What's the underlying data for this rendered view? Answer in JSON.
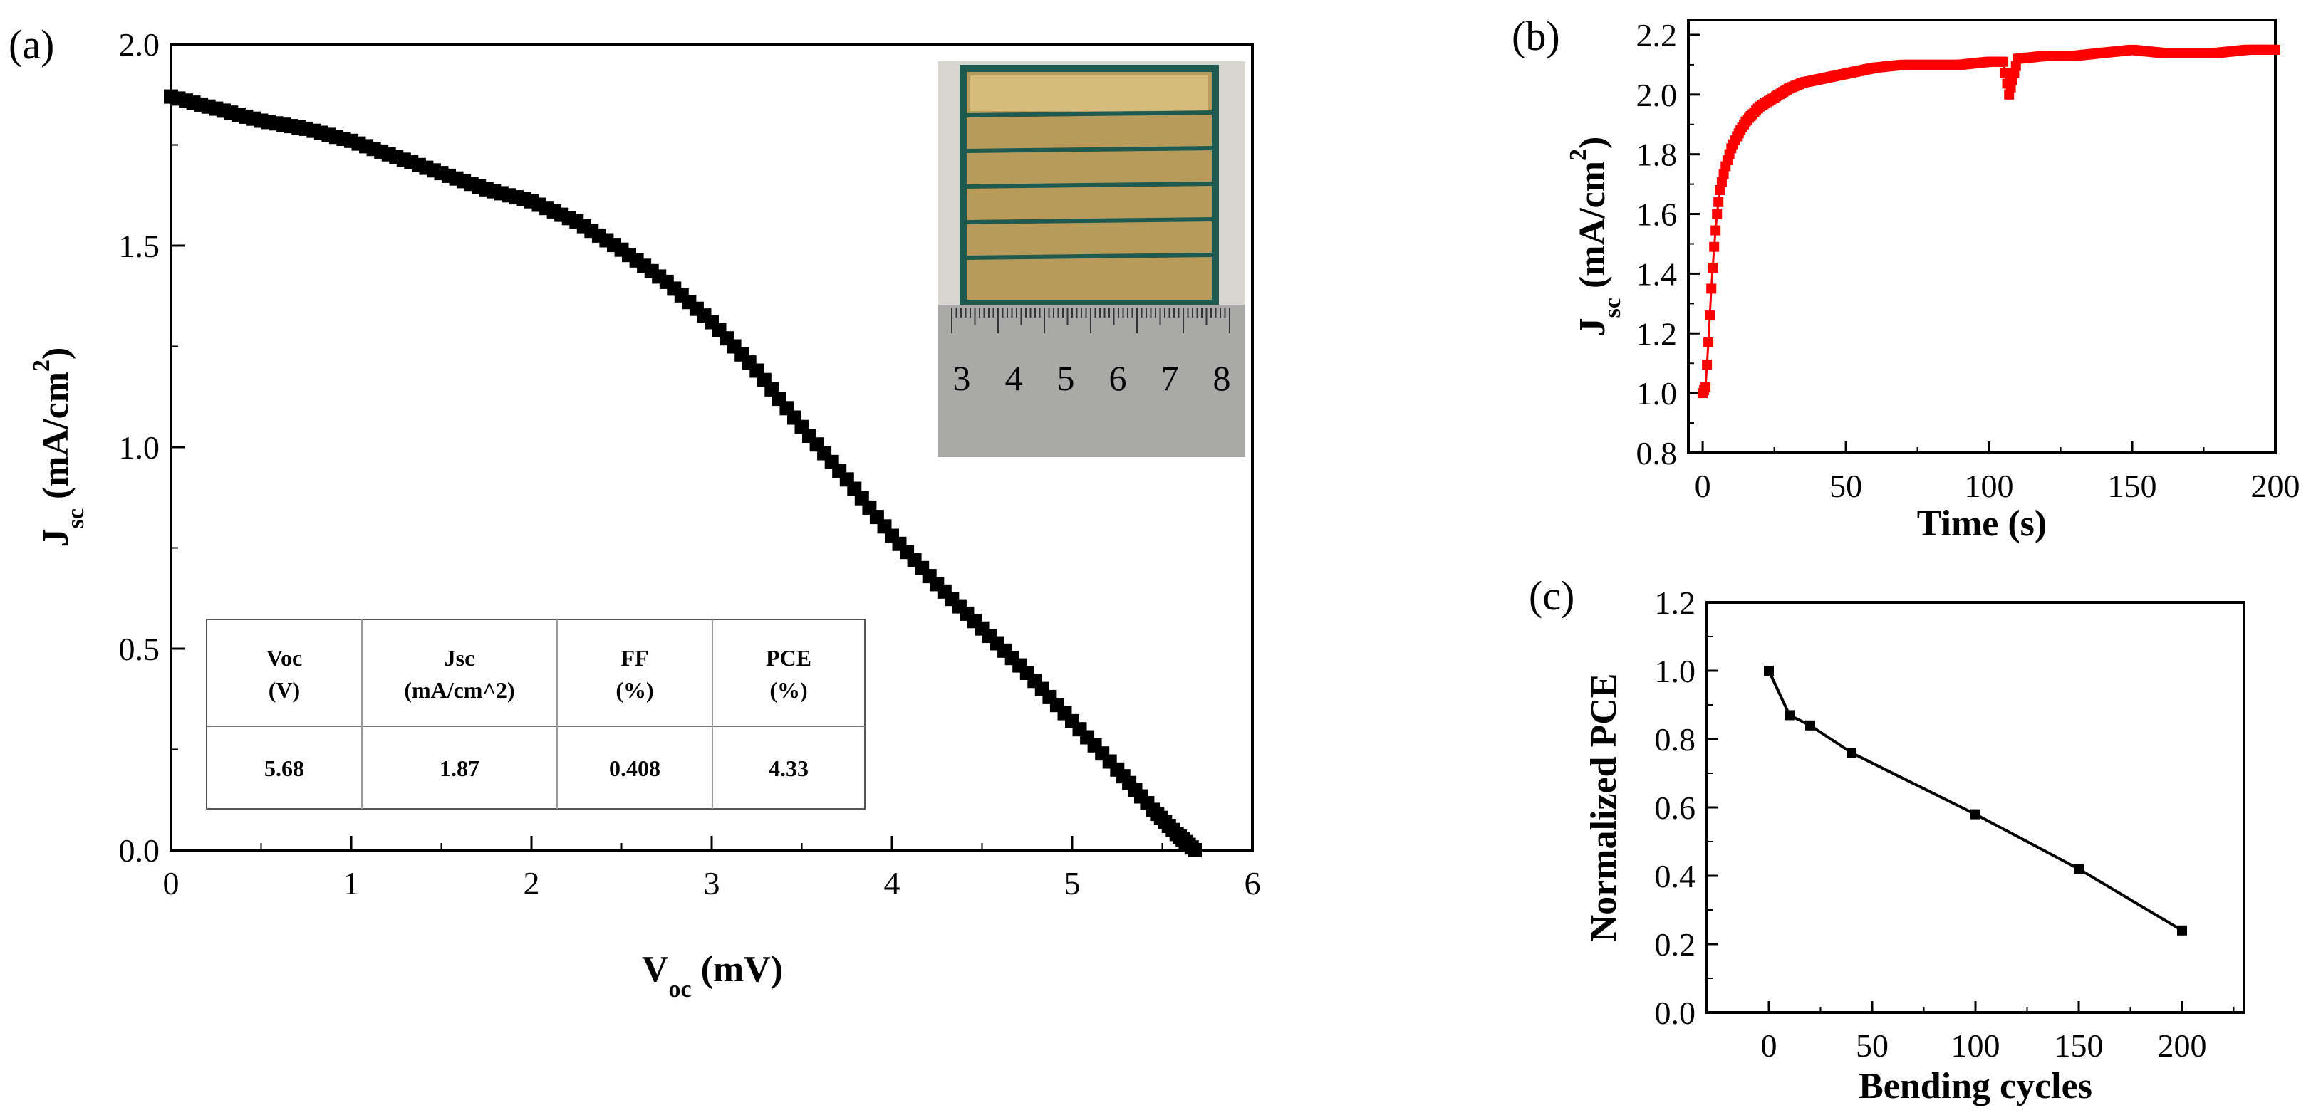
{
  "chart_data": [
    {
      "panel": "(a)",
      "type": "line",
      "title": "",
      "xlabel": "V",
      "xlabel_sub": "oc",
      "xlabel_unit": " (mV)",
      "ylabel": "J",
      "ylabel_sub": "sc",
      "ylabel_unit": " (mA/cm",
      "ylabel_sup": "2",
      "ylabel_close": ")",
      "xlim": [
        0,
        6
      ],
      "ylim": [
        0,
        2.0
      ],
      "xticks": [
        "0",
        "1",
        "2",
        "3",
        "4",
        "5",
        "6"
      ],
      "yticks": [
        "0.0",
        "0.5",
        "1.0",
        "1.5",
        "2.0"
      ],
      "marker_color": "#000000",
      "grid": false,
      "series": [
        {
          "marker": "square",
          "x": [
            0,
            0.25,
            0.5,
            0.75,
            1.0,
            1.25,
            1.5,
            1.75,
            2.0,
            2.25,
            2.5,
            2.75,
            3.0,
            3.25,
            3.5,
            3.75,
            4.0,
            4.25,
            4.5,
            4.75,
            5.0,
            5.25,
            5.45,
            5.58,
            5.68
          ],
          "y": [
            1.87,
            1.84,
            1.81,
            1.79,
            1.76,
            1.72,
            1.68,
            1.64,
            1.61,
            1.56,
            1.49,
            1.41,
            1.31,
            1.19,
            1.05,
            0.92,
            0.78,
            0.66,
            0.55,
            0.44,
            0.32,
            0.2,
            0.1,
            0.04,
            0.0
          ]
        }
      ],
      "inset_table": {
        "headers": [
          [
            "Voc",
            "(V)"
          ],
          [
            "Jsc",
            "(mA/cm^2)"
          ],
          [
            "FF",
            "(%)"
          ],
          [
            "PCE",
            "(%)"
          ]
        ],
        "values": [
          "5.68",
          "1.87",
          "0.408",
          "4.33"
        ]
      },
      "inset_photo": {
        "description_icon": "solar-module-photo",
        "ruler_labels": [
          "3",
          "4",
          "5",
          "6",
          "7",
          "8"
        ]
      }
    },
    {
      "panel": "(b)",
      "type": "line",
      "title": "",
      "xlabel": "Time (s)",
      "ylabel": "J",
      "ylabel_sub": "sc",
      "ylabel_unit": " (mA/cm",
      "ylabel_sup": "2",
      "ylabel_close": ")",
      "xlim": [
        -5,
        200
      ],
      "ylim": [
        0.8,
        2.25
      ],
      "xticks": [
        "0",
        "50",
        "100",
        "150",
        "200"
      ],
      "yticks": [
        "0.8",
        "1.0",
        "1.2",
        "1.4",
        "1.6",
        "1.8",
        "2.0",
        "2.2"
      ],
      "marker_color": "#ff0000",
      "grid": false,
      "series": [
        {
          "marker": "square",
          "x": [
            0,
            1,
            2,
            3,
            4,
            5,
            6,
            8,
            10,
            12,
            15,
            18,
            20,
            25,
            30,
            35,
            40,
            45,
            50,
            55,
            60,
            70,
            80,
            90,
            100,
            105,
            107,
            110,
            120,
            130,
            140,
            150,
            160,
            170,
            180,
            190,
            200
          ],
          "y": [
            1.0,
            1.02,
            1.17,
            1.35,
            1.49,
            1.6,
            1.68,
            1.76,
            1.82,
            1.86,
            1.91,
            1.94,
            1.96,
            1.99,
            2.02,
            2.04,
            2.05,
            2.06,
            2.07,
            2.08,
            2.09,
            2.1,
            2.1,
            2.1,
            2.11,
            2.11,
            2.0,
            2.12,
            2.13,
            2.13,
            2.14,
            2.15,
            2.14,
            2.14,
            2.14,
            2.15,
            2.15
          ]
        }
      ]
    },
    {
      "panel": "(c)",
      "type": "line",
      "title": "",
      "xlabel": "Bending cycles",
      "ylabel": "Normalized PCE",
      "xlim": [
        -30,
        230
      ],
      "ylim": [
        0,
        1.2
      ],
      "xticks": [
        "0",
        "50",
        "100",
        "150",
        "200"
      ],
      "yticks": [
        "0.0",
        "0.2",
        "0.4",
        "0.6",
        "0.8",
        "1.0",
        "1.2"
      ],
      "marker_color": "#000000",
      "grid": false,
      "series": [
        {
          "marker": "square",
          "x": [
            0,
            10,
            20,
            40,
            100,
            150,
            200
          ],
          "y": [
            1.0,
            0.87,
            0.84,
            0.76,
            0.58,
            0.42,
            0.24
          ]
        }
      ]
    }
  ]
}
